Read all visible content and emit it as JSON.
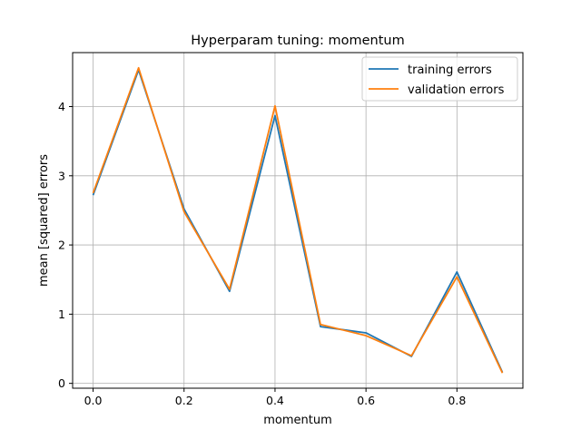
{
  "chart_data": {
    "type": "line",
    "title": "Hyperparam tuning: momentum",
    "xlabel": "momentum",
    "ylabel": "mean [squared] errors",
    "x": [
      0.0,
      0.1,
      0.2,
      0.3,
      0.4,
      0.5,
      0.6,
      0.7,
      0.8,
      0.9
    ],
    "series": [
      {
        "name": "training errors",
        "color": "#1f77b4",
        "values": [
          2.72,
          4.53,
          2.52,
          1.33,
          3.87,
          0.82,
          0.73,
          0.39,
          1.61,
          0.16
        ]
      },
      {
        "name": "validation errors",
        "color": "#ff7f0e",
        "values": [
          2.75,
          4.56,
          2.48,
          1.36,
          4.01,
          0.85,
          0.69,
          0.4,
          1.54,
          0.15
        ]
      }
    ],
    "xlim": [
      -0.045,
      0.945
    ],
    "ylim": [
      -0.07,
      4.78
    ],
    "xticks": [
      0.0,
      0.2,
      0.4,
      0.6,
      0.8
    ],
    "xtick_labels": [
      "0.0",
      "0.2",
      "0.4",
      "0.6",
      "0.8"
    ],
    "yticks": [
      0,
      1,
      2,
      3,
      4
    ],
    "ytick_labels": [
      "0",
      "1",
      "2",
      "3",
      "4"
    ],
    "grid": true,
    "legend_position": "top-right"
  }
}
